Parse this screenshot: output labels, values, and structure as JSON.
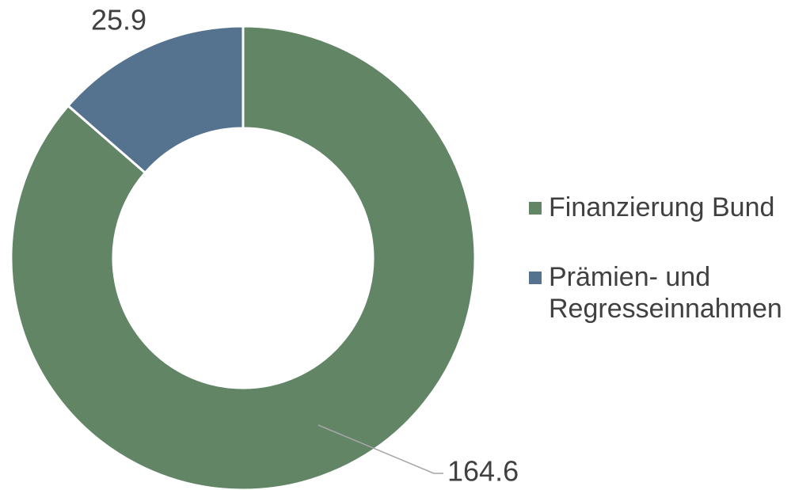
{
  "chart_data": {
    "type": "donut",
    "categories": [
      "Finanzierung Bund",
      "Prämien- und Regresseinnahmen"
    ],
    "values": [
      164.6,
      25.9
    ],
    "colors": [
      "#618565",
      "#55738f"
    ],
    "legend": "right"
  }
}
